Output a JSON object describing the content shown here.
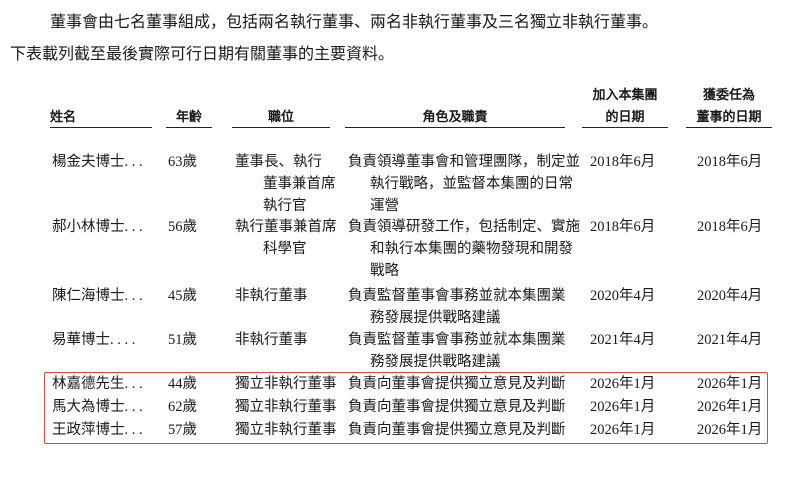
{
  "intro": {
    "line1": "董事會由七名董事組成，包括兩名執行董事、兩名非執行董事及三名獨立非執行董事。",
    "line2": "下表載列截至最後實際可行日期有關董事的主要資料。"
  },
  "table": {
    "headers": {
      "name": "姓名",
      "age": "年齡",
      "position": "職位",
      "role": "角色及職責",
      "join_date": [
        "加入本集團",
        "的日期"
      ],
      "appointed_date": [
        "獲委任為",
        "董事的日期"
      ]
    },
    "rows": [
      {
        "name": "楊金夫博士. . .",
        "age": "63歲",
        "position": [
          "董事長、執行",
          "董事兼首席",
          "執行官"
        ],
        "role": [
          "負責領導董事會和管理團隊，制定並",
          "執行戰略，並監督本集團的日常",
          "運營"
        ],
        "join": "2018年6月",
        "appointed": "2018年6月"
      },
      {
        "name": "郝小林博士. . .",
        "age": "56歲",
        "position": [
          "執行董事兼首席",
          "科學官"
        ],
        "role": [
          "負責領導研發工作，包括制定、實施",
          "和執行本集團的藥物發現和開發",
          "戰略"
        ],
        "join": "2018年6月",
        "appointed": "2018年6月"
      },
      {
        "name": "陳仁海博士. . .",
        "age": "45歲",
        "position": [
          "非執行董事"
        ],
        "role": [
          "負責監督董事會事務並就本集團業",
          "務發展提供戰略建議"
        ],
        "join": "2020年4月",
        "appointed": "2020年4月"
      },
      {
        "name": "易華博士. . . .",
        "age": "51歲",
        "position": [
          "非執行董事"
        ],
        "role": [
          "負責監督董事會事務並就本集團業",
          "務發展提供戰略建議"
        ],
        "join": "2021年4月",
        "appointed": "2021年4月"
      },
      {
        "name": "林嘉德先生. . .",
        "age": "44歲",
        "position": [
          "獨立非執行董事"
        ],
        "role": [
          "負責向董事會提供獨立意見及判斷"
        ],
        "join": "2026年1月",
        "appointed": "2026年1月"
      },
      {
        "name": "馬大為博士. . .",
        "age": "62歲",
        "position": [
          "獨立非執行董事"
        ],
        "role": [
          "負責向董事會提供獨立意見及判斷"
        ],
        "join": "2026年1月",
        "appointed": "2026年1月"
      },
      {
        "name": "王政萍博士. . .",
        "age": "57歲",
        "position": [
          "獨立非執行董事"
        ],
        "role": [
          "負責向董事會提供獨立意見及判斷"
        ],
        "join": "2026年1月",
        "appointed": "2026年1月"
      }
    ],
    "highlight_color": "#e0463a"
  }
}
